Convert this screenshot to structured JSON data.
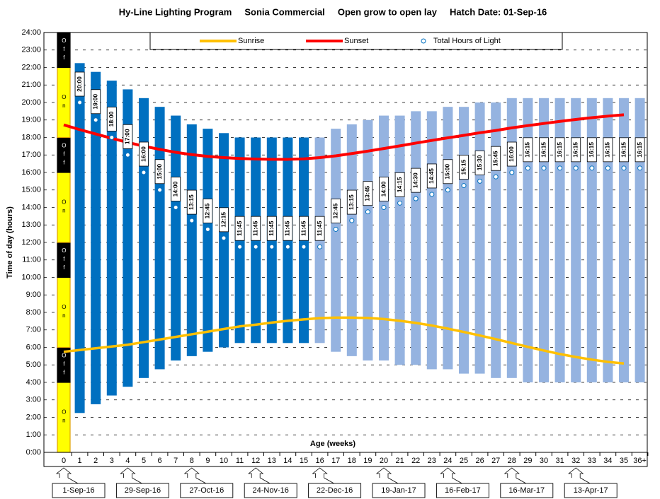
{
  "chart_data": {
    "type": "floating-bar",
    "title": "Hy-Line Lighting Program     Sonia Commercial     Open grow to open lay     Hatch Date: 01-Sep-16",
    "ylabel": "Time of day (hours)",
    "xlabel": "Age (weeks)",
    "categories": [
      "0",
      "1",
      "2",
      "3",
      "4",
      "5",
      "6",
      "7",
      "8",
      "9",
      "10",
      "11",
      "12",
      "13",
      "14",
      "15",
      "16",
      "17",
      "18",
      "19",
      "20",
      "21",
      "22",
      "23",
      "24",
      "25",
      "26",
      "27",
      "28",
      "29",
      "30",
      "31",
      "32",
      "33",
      "34",
      "35",
      "36+"
    ],
    "ylim": [
      0,
      24
    ],
    "yticks": [
      {
        "value": 0,
        "label": "0:00"
      },
      {
        "value": 1,
        "label": "1:00"
      },
      {
        "value": 2,
        "label": "2:00"
      },
      {
        "value": 3,
        "label": "3:00"
      },
      {
        "value": 4,
        "label": "4:00"
      },
      {
        "value": 5,
        "label": "5:00"
      },
      {
        "value": 6,
        "label": "6:00"
      },
      {
        "value": 7,
        "label": "7:00"
      },
      {
        "value": 8,
        "label": "8:00"
      },
      {
        "value": 9,
        "label": "9:00"
      },
      {
        "value": 10,
        "label": "10:00"
      },
      {
        "value": 11,
        "label": "11:00"
      },
      {
        "value": 12,
        "label": "12:00"
      },
      {
        "value": 13,
        "label": "13:00"
      },
      {
        "value": 14,
        "label": "14:00"
      },
      {
        "value": 15,
        "label": "15:00"
      },
      {
        "value": 16,
        "label": "16:00"
      },
      {
        "value": 17,
        "label": "17:00"
      },
      {
        "value": 18,
        "label": "18:00"
      },
      {
        "value": 19,
        "label": "19:00"
      },
      {
        "value": 20,
        "label": "20:00"
      },
      {
        "value": 21,
        "label": "21:00"
      },
      {
        "value": 22,
        "label": "22:00"
      },
      {
        "value": 23,
        "label": "23:00"
      },
      {
        "value": 24,
        "label": "24:00"
      }
    ],
    "grid": true,
    "week0_program": [
      {
        "start": 0,
        "end": 4,
        "label": "On"
      },
      {
        "start": 4,
        "end": 6,
        "label": "Off"
      },
      {
        "start": 6,
        "end": 10,
        "label": "On"
      },
      {
        "start": 10,
        "end": 12,
        "label": "Off"
      },
      {
        "start": 12,
        "end": 16,
        "label": "On"
      },
      {
        "start": 16,
        "end": 18,
        "label": "Off"
      },
      {
        "start": 18,
        "end": 22,
        "label": "On"
      },
      {
        "start": 22,
        "end": 24,
        "label": "Off"
      }
    ],
    "bars": {
      "start": [
        null,
        2.25,
        2.75,
        3.25,
        3.75,
        4.25,
        4.75,
        5.25,
        5.5,
        5.75,
        6,
        6.25,
        6.25,
        6.25,
        6.25,
        6.25,
        6.25,
        5.75,
        5.5,
        5.25,
        5.25,
        5,
        5,
        4.75,
        4.75,
        4.5,
        4.5,
        4.25,
        4.25,
        4,
        4,
        4,
        4,
        4,
        4,
        4,
        4
      ],
      "end": [
        null,
        22.25,
        21.75,
        21.25,
        20.75,
        20.25,
        19.75,
        19.25,
        18.75,
        18.5,
        18.25,
        18,
        18,
        18,
        18,
        18,
        18,
        18.5,
        18.75,
        19,
        19.25,
        19.25,
        19.5,
        19.5,
        19.75,
        19.75,
        20,
        20,
        20.25,
        20.25,
        20.25,
        20.25,
        20.25,
        20.25,
        20.25,
        20.25,
        20.25
      ],
      "colors": [
        null,
        "#0070c0",
        "#0070c0",
        "#0070c0",
        "#0070c0",
        "#0070c0",
        "#0070c0",
        "#0070c0",
        "#0070c0",
        "#0070c0",
        "#0070c0",
        "#0070c0",
        "#0070c0",
        "#0070c0",
        "#0070c0",
        "#0070c0",
        "#95b3e0",
        "#95b3e0",
        "#95b3e0",
        "#95b3e0",
        "#95b3e0",
        "#95b3e0",
        "#95b3e0",
        "#95b3e0",
        "#95b3e0",
        "#95b3e0",
        "#95b3e0",
        "#95b3e0",
        "#95b3e0",
        "#95b3e0",
        "#95b3e0",
        "#95b3e0",
        "#95b3e0",
        "#95b3e0",
        "#95b3e0",
        "#95b3e0",
        "#95b3e0"
      ]
    },
    "series": [
      {
        "name": "Sunrise",
        "color": "#ffc000",
        "values": [
          5.75,
          5.85,
          5.95,
          6.05,
          6.15,
          6.3,
          6.45,
          6.6,
          6.75,
          6.9,
          7.05,
          7.2,
          7.3,
          7.42,
          7.52,
          7.6,
          7.67,
          7.7,
          7.7,
          7.68,
          7.62,
          7.52,
          7.4,
          7.25,
          7.07,
          6.88,
          6.68,
          6.47,
          6.25,
          6.03,
          5.82,
          5.62,
          5.45,
          5.3,
          5.17,
          5.08,
          null
        ]
      },
      {
        "name": "Sunset",
        "color": "#ff0000",
        "values": [
          18.72,
          18.45,
          18.2,
          17.95,
          17.72,
          17.5,
          17.32,
          17.15,
          17.02,
          16.92,
          16.85,
          16.8,
          16.77,
          16.75,
          16.75,
          16.78,
          16.85,
          16.95,
          17.08,
          17.22,
          17.37,
          17.52,
          17.68,
          17.83,
          17.98,
          18.12,
          18.27,
          18.4,
          18.55,
          18.68,
          18.8,
          18.92,
          19.03,
          19.13,
          19.22,
          19.3,
          null
        ]
      },
      {
        "name": "Total Hours of Light",
        "color": "#0070c0",
        "values": [
          null,
          20,
          19,
          18,
          17,
          16,
          15,
          14,
          13.25,
          12.75,
          12.25,
          11.75,
          11.75,
          11.75,
          11.75,
          11.75,
          11.75,
          12.75,
          13.25,
          13.75,
          14,
          14.25,
          14.5,
          14.75,
          15,
          15.25,
          15.5,
          15.75,
          16,
          16.25,
          16.25,
          16.25,
          16.25,
          16.25,
          16.25,
          16.25,
          16.25
        ],
        "value_labels": [
          null,
          "20:00",
          "19:00",
          "18:00",
          "17:00",
          "16:00",
          "15:00",
          "14:00",
          "13:15",
          "12:45",
          "12:15",
          "11:45",
          "11:45",
          "11:45",
          "11:45",
          "11:45",
          "11:45",
          "12:45",
          "13:15",
          "13:45",
          "14:00",
          "14:15",
          "14:30",
          "14:45",
          "15:00",
          "15:15",
          "15:30",
          "15:45",
          "16:00",
          "16:15",
          "16:15",
          "16:15",
          "16:15",
          "16:15",
          "16:15",
          "16:15",
          "16:15"
        ]
      }
    ],
    "dates": [
      "1-Sep-16",
      "29-Sep-16",
      "27-Oct-16",
      "24-Nov-16",
      "22-Dec-16",
      "19-Jan-17",
      "16-Feb-17",
      "16-Mar-17",
      "13-Apr-17"
    ]
  }
}
